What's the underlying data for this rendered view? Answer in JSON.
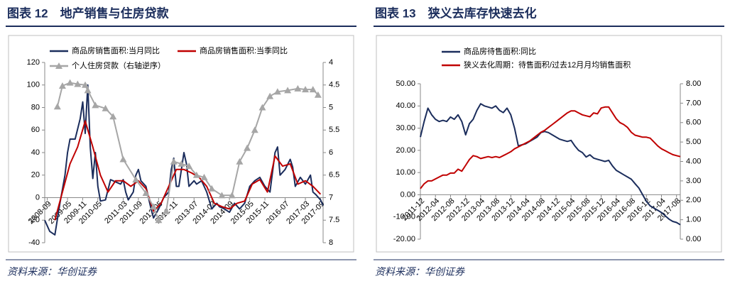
{
  "chart_data": [
    {
      "type": "line",
      "title": "图表 12　地产销售与住房贷款",
      "source": "资料来源：华创证券",
      "xlim": [
        "2008-08",
        "2017-10"
      ],
      "xticks": [
        "2008-09",
        "2009-05",
        "2009-11",
        "2010-05",
        "2011-03",
        "2011-09",
        "2012-05",
        "2012-11",
        "2013-07",
        "2014-02",
        "2014-09",
        "2015-05",
        "2015-11",
        "2016-07",
        "2017-03",
        "2017-09"
      ],
      "ylim": [
        -40,
        120
      ],
      "yticks": [
        -40,
        -20,
        0,
        20,
        40,
        60,
        80,
        100,
        120
      ],
      "y2lim": [
        4,
        8
      ],
      "y2ticks": [
        4,
        4.5,
        5,
        5.5,
        6,
        6.5,
        7,
        7.5,
        8
      ],
      "y2_inverted": true,
      "series": [
        {
          "name": "商品房销售面积:当月同比",
          "color": "#1b2d5c",
          "x": [
            "2008-08",
            "2008-10",
            "2008-12",
            "2009-02",
            "2009-04",
            "2009-05",
            "2009-06",
            "2009-08",
            "2009-10",
            "2009-11",
            "2009-12",
            "2010-01",
            "2010-02",
            "2010-03",
            "2010-04",
            "2010-05",
            "2010-06",
            "2010-08",
            "2010-10",
            "2010-12",
            "2011-02",
            "2011-03",
            "2011-04",
            "2011-05",
            "2011-07",
            "2011-08",
            "2011-09",
            "2011-10",
            "2011-12",
            "2012-02",
            "2012-03",
            "2012-05",
            "2012-07",
            "2012-09",
            "2012-10",
            "2012-11",
            "2012-12",
            "2013-01",
            "2013-03",
            "2013-04",
            "2013-05",
            "2013-07",
            "2013-08",
            "2013-10",
            "2013-12",
            "2014-02",
            "2014-04",
            "2014-05",
            "2014-07",
            "2014-09",
            "2014-11",
            "2015-01",
            "2015-03",
            "2015-05",
            "2015-07",
            "2015-09",
            "2015-11",
            "2016-01",
            "2016-03",
            "2016-04",
            "2016-05",
            "2016-07",
            "2016-09",
            "2016-10",
            "2016-11",
            "2017-01",
            "2017-03",
            "2017-05",
            "2017-06",
            "2017-07",
            "2017-09",
            "2017-10"
          ],
          "values": [
            -20,
            -30,
            -33,
            -5,
            20,
            40,
            52,
            52,
            70,
            85,
            57,
            100,
            45,
            17,
            40,
            10,
            -3,
            -2,
            16,
            14,
            12,
            16,
            5,
            -2,
            5,
            20,
            25,
            15,
            10,
            -10,
            -18,
            -10,
            0,
            5,
            25,
            35,
            10,
            10,
            40,
            30,
            10,
            15,
            12,
            15,
            5,
            -10,
            -5,
            -8,
            -10,
            -13,
            -5,
            -10,
            -5,
            10,
            15,
            18,
            10,
            5,
            40,
            45,
            20,
            25,
            34,
            27,
            10,
            18,
            12,
            20,
            5,
            3,
            -2,
            -7
          ]
        },
        {
          "name": "商品房销售面积:当季同比",
          "color": "#c00000",
          "x": [
            "2008-12",
            "2009-03",
            "2009-06",
            "2009-09",
            "2009-12",
            "2010-03",
            "2010-06",
            "2010-09",
            "2010-12",
            "2011-03",
            "2011-06",
            "2011-09",
            "2011-12",
            "2012-03",
            "2012-06",
            "2012-09",
            "2012-12",
            "2013-03",
            "2013-06",
            "2013-09",
            "2013-12",
            "2014-03",
            "2014-06",
            "2014-09",
            "2014-12",
            "2015-03",
            "2015-06",
            "2015-09",
            "2015-12",
            "2016-03",
            "2016-06",
            "2016-09",
            "2016-12",
            "2017-03",
            "2017-06",
            "2017-09"
          ],
          "values": [
            -20,
            5,
            30,
            45,
            68,
            45,
            20,
            5,
            15,
            15,
            10,
            15,
            8,
            -12,
            -5,
            10,
            25,
            25,
            22,
            18,
            10,
            -5,
            -8,
            -10,
            -5,
            -3,
            12,
            16,
            5,
            37,
            28,
            30,
            12,
            15,
            10,
            3
          ]
        },
        {
          "name": "个人住房贷款（右轴逆序）",
          "color": "#a6a6a6",
          "axis": "y2",
          "marker": "triangle",
          "x": [
            "2009-01",
            "2009-03",
            "2009-06",
            "2009-09",
            "2009-12",
            "2010-01",
            "2010-04",
            "2010-08",
            "2010-11",
            "2011-03",
            "2011-08",
            "2011-12",
            "2012-03",
            "2012-05",
            "2012-08",
            "2012-11",
            "2013-02",
            "2013-05",
            "2013-08",
            "2013-11",
            "2014-02",
            "2014-06",
            "2014-10",
            "2015-01",
            "2015-04",
            "2015-07",
            "2015-10",
            "2016-01",
            "2016-04",
            "2016-08",
            "2016-12",
            "2017-03",
            "2017-06",
            "2017-08"
          ],
          "values": [
            4.98,
            4.52,
            4.45,
            4.48,
            4.5,
            4.62,
            4.95,
            5.02,
            5.2,
            6.15,
            6.6,
            6.9,
            7.2,
            7.5,
            7.3,
            6.2,
            6.25,
            6.3,
            6.5,
            6.55,
            6.8,
            6.95,
            6.95,
            6.2,
            5.9,
            5.5,
            5.0,
            4.75,
            4.65,
            4.62,
            4.58,
            4.6,
            4.6,
            4.72
          ]
        }
      ]
    },
    {
      "type": "line",
      "title": "图表 13　狭义去库存快速去化",
      "source": "资料来源：华创证券",
      "xlim": [
        "2011-12",
        "2017-09"
      ],
      "xticks": [
        "2011-12",
        "2012-04",
        "2012-08",
        "2012-12",
        "2013-04",
        "2013-08",
        "2013-12",
        "2014-04",
        "2014-08",
        "2014-12",
        "2015-04",
        "2015-08",
        "2015-12",
        "2016-04",
        "2016-08",
        "2016-12",
        "2017-04",
        "2017-08"
      ],
      "ylim": [
        -20,
        50
      ],
      "yticks": [
        {
          "value": -20,
          "label": "-20.00"
        },
        {
          "value": -10,
          "label": "-10.00"
        },
        {
          "value": 0,
          "label": "0.00"
        },
        {
          "value": 10,
          "label": "10.00"
        },
        {
          "value": 20,
          "label": "20.00"
        },
        {
          "value": 30,
          "label": "30.00"
        },
        {
          "value": 40,
          "label": "40.00"
        },
        {
          "value": 50,
          "label": "50.00"
        }
      ],
      "y2lim": [
        0,
        8
      ],
      "y2ticks": [
        {
          "value": 0,
          "label": "0.00"
        },
        {
          "value": 1,
          "label": "1.00"
        },
        {
          "value": 2,
          "label": "2.00"
        },
        {
          "value": 3,
          "label": "3.00"
        },
        {
          "value": 4,
          "label": "4.00"
        },
        {
          "value": 5,
          "label": "5.00"
        },
        {
          "value": 6,
          "label": "6.00"
        },
        {
          "value": 7,
          "label": "7.00"
        },
        {
          "value": 8,
          "label": "8.00"
        }
      ],
      "x": [
        "2011-12",
        "2012-01",
        "2012-02",
        "2012-03",
        "2012-04",
        "2012-05",
        "2012-06",
        "2012-07",
        "2012-08",
        "2012-09",
        "2012-10",
        "2012-11",
        "2012-12",
        "2013-01",
        "2013-02",
        "2013-03",
        "2013-04",
        "2013-05",
        "2013-06",
        "2013-07",
        "2013-08",
        "2013-09",
        "2013-10",
        "2013-11",
        "2013-12",
        "2014-01",
        "2014-02",
        "2014-03",
        "2014-04",
        "2014-05",
        "2014-06",
        "2014-07",
        "2014-08",
        "2014-09",
        "2014-10",
        "2014-11",
        "2014-12",
        "2015-01",
        "2015-02",
        "2015-03",
        "2015-04",
        "2015-05",
        "2015-06",
        "2015-07",
        "2015-08",
        "2015-09",
        "2015-10",
        "2015-11",
        "2015-12",
        "2016-01",
        "2016-02",
        "2016-03",
        "2016-04",
        "2016-05",
        "2016-06",
        "2016-07",
        "2016-08",
        "2016-09",
        "2016-10",
        "2016-11",
        "2016-12",
        "2017-01",
        "2017-02",
        "2017-03",
        "2017-04",
        "2017-05",
        "2017-06",
        "2017-07",
        "2017-08",
        "2017-09"
      ],
      "series": [
        {
          "name": "商品房待售面积:同比",
          "color": "#1b2d5c",
          "values": [
            26,
            33,
            39,
            36,
            34,
            33,
            33.5,
            33,
            35,
            34,
            36,
            33,
            27,
            32,
            34,
            38,
            41,
            40,
            39.5,
            39,
            40,
            38,
            37,
            39,
            36,
            30,
            22,
            22.5,
            23,
            24,
            25,
            26,
            28,
            28.5,
            28,
            27,
            26,
            25,
            24.5,
            24,
            24.5,
            22,
            20,
            19,
            17,
            18,
            16.5,
            16,
            15.5,
            15,
            15.5,
            13,
            11,
            10,
            9,
            8,
            7,
            5,
            3,
            0,
            -3,
            -5,
            -6,
            -7,
            -8,
            -9.5,
            -11,
            -12,
            -12.5,
            -13.5
          ]
        },
        {
          "name": "狭义去化周期：待售面积/过去12月月均销售面积",
          "color": "#c00000",
          "axis": "y2",
          "values": [
            2.6,
            2.85,
            3.0,
            3.0,
            3.1,
            3.2,
            3.3,
            3.3,
            3.4,
            3.4,
            3.6,
            3.5,
            3.8,
            4.1,
            4.3,
            4.25,
            4.15,
            4.2,
            4.25,
            4.2,
            4.25,
            4.2,
            4.3,
            4.4,
            4.5,
            4.65,
            4.75,
            4.85,
            4.95,
            5.05,
            5.2,
            5.35,
            5.5,
            5.6,
            5.75,
            5.9,
            6.05,
            6.2,
            6.35,
            6.5,
            6.6,
            6.6,
            6.5,
            6.4,
            6.35,
            6.3,
            6.5,
            6.45,
            6.75,
            6.8,
            6.8,
            6.5,
            6.2,
            6.0,
            5.9,
            5.75,
            5.5,
            5.35,
            5.3,
            5.25,
            5.25,
            5.2,
            5.0,
            4.8,
            4.65,
            4.55,
            4.45,
            4.35,
            4.3,
            4.25
          ]
        }
      ]
    }
  ]
}
